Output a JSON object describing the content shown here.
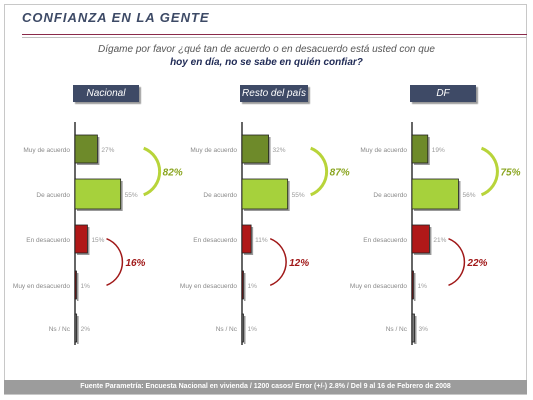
{
  "page": {
    "title": "CONFIANZA EN LA GENTE",
    "question_line1": "Dígame por favor ¿qué tan de acuerdo o en desacuerdo está usted con que",
    "question_line2": "hoy en día, no se sabe en quién confiar?",
    "footer": "Fuente Parametría: Encuesta Nacional en vivienda / 1200 casos/ Error (+/-) 2.8% / Del 9 al 16 de Febrero de 2008"
  },
  "colors": {
    "muy_de_acuerdo": "#6e8a2a",
    "de_acuerdo": "#a6d13c",
    "en_desacuerdo": "#b01818",
    "muy_en_desacuerdo": "#7a1010",
    "nsnc": "#777777",
    "agree_arc": "#b8d43a",
    "agree_text": "#8aa520",
    "disagree_arc": "#a01818",
    "disagree_text": "#a01818",
    "header_bg": "#3e4a66"
  },
  "chart_data": [
    {
      "type": "bar",
      "orientation": "horizontal",
      "panel": "Nacional",
      "categories": [
        "Muy de acuerdo",
        "De acuerdo",
        "En desacuerdo",
        "Muy en desacuerdo",
        "Ns / Nc"
      ],
      "values": [
        27,
        55,
        15,
        1,
        2
      ],
      "value_labels": [
        "27%",
        "55%",
        "15%",
        "1%",
        "2%"
      ],
      "agree_total": "82%",
      "disagree_total": "16%"
    },
    {
      "type": "bar",
      "orientation": "horizontal",
      "panel": "Resto del país",
      "categories": [
        "Muy de acuerdo",
        "De acuerdo",
        "En desacuerdo",
        "Muy en desacuerdo",
        "Ns / Nc"
      ],
      "values": [
        32,
        55,
        11,
        1,
        1
      ],
      "value_labels": [
        "32%",
        "55%",
        "11%",
        "1%",
        "1%"
      ],
      "agree_total": "87%",
      "disagree_total": "12%"
    },
    {
      "type": "bar",
      "orientation": "horizontal",
      "panel": "DF",
      "categories": [
        "Muy de acuerdo",
        "De acuerdo",
        "En desacuerdo",
        "Muy en desacuerdo",
        "Ns / Nc"
      ],
      "values": [
        19,
        56,
        21,
        1,
        3
      ],
      "value_labels": [
        "19%",
        "56%",
        "21%",
        "1%",
        "3%"
      ],
      "agree_total": "75%",
      "disagree_total": "22%"
    }
  ]
}
